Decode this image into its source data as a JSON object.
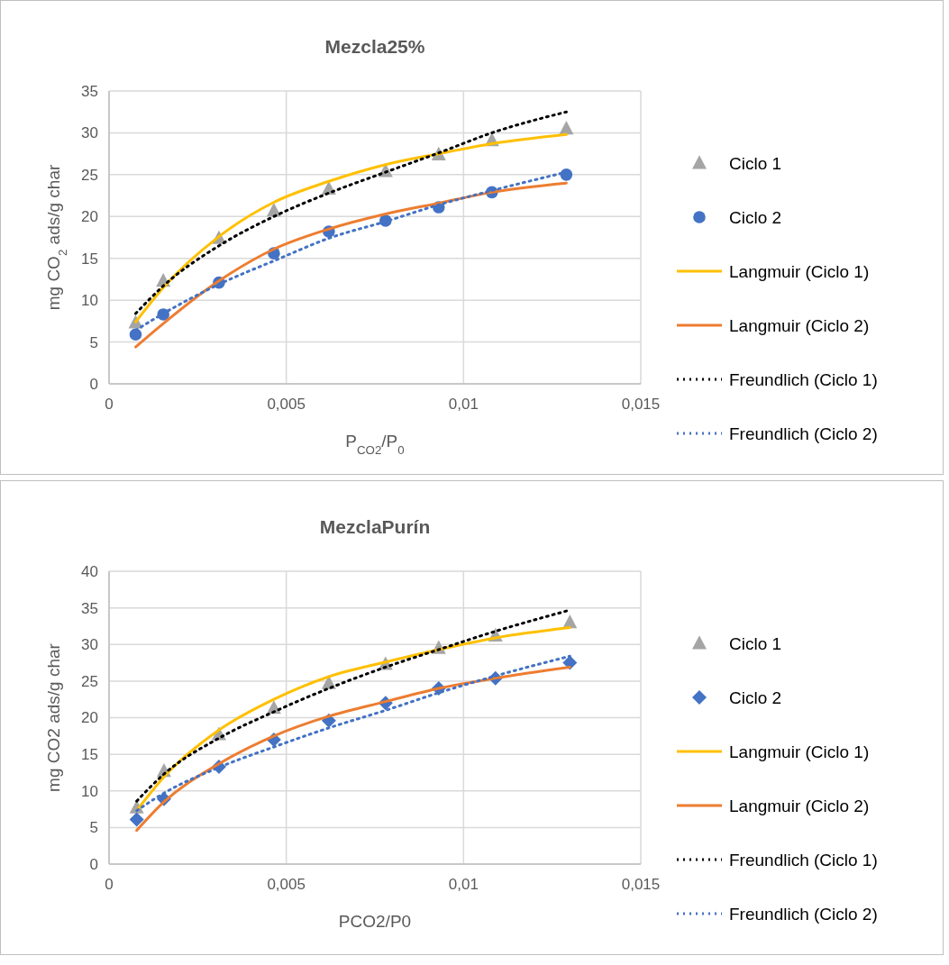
{
  "chart_data": [
    {
      "type": "scatter",
      "title": "Mezcla25%",
      "xlabel": "P$_{CO2}$/P$_{0}$",
      "ylabel": "mg CO$_{2}$ ads/g char",
      "xlim": [
        0,
        0.015
      ],
      "xticks": [
        0,
        {
          "value": 0.005,
          "label": "0,005"
        },
        {
          "value": 0.01,
          "label": "0,01"
        },
        {
          "value": 0.015,
          "label": "0,015"
        }
      ],
      "ylim": [
        0,
        35
      ],
      "yticks": [
        0,
        5,
        10,
        15,
        20,
        25,
        30,
        35
      ],
      "grid": true,
      "legend": "right",
      "x": [
        0.00075,
        0.00153,
        0.0031,
        0.00465,
        0.0062,
        0.0078,
        0.0093,
        0.0108,
        0.0129
      ],
      "series": [
        {
          "name": "Ciclo 1",
          "type": "scatter",
          "marker": "triangle",
          "color": "#a5a5a5",
          "values": [
            7.3,
            12.3,
            17.4,
            20.7,
            23.3,
            25.4,
            27.4,
            29.1,
            30.5
          ]
        },
        {
          "name": "Ciclo 2",
          "type": "scatter",
          "marker": "circle",
          "color": "#4472c4",
          "values": [
            5.9,
            8.3,
            12.1,
            15.6,
            18.2,
            19.5,
            21.1,
            22.9,
            25.0
          ]
        },
        {
          "name": "Langmuir (Ciclo 1)",
          "type": "line",
          "marker": "none",
          "line_style": "solid",
          "color": "#ffc000",
          "values": [
            7.4,
            11.5,
            17.6,
            21.7,
            24.2,
            26.2,
            27.5,
            28.7,
            29.8
          ]
        },
        {
          "name": "Langmuir (Ciclo 2)",
          "type": "line",
          "marker": "none",
          "line_style": "solid",
          "color": "#ed7d31",
          "values": [
            4.4,
            7.2,
            12.3,
            16.1,
            18.5,
            20.3,
            21.6,
            22.9,
            24.0
          ]
        },
        {
          "name": "Freundlich (Ciclo 1)",
          "type": "line",
          "marker": "none",
          "line_style": "dotted",
          "color": "#000000",
          "values": [
            8.4,
            11.7,
            16.5,
            20.0,
            22.8,
            25.3,
            27.6,
            30.0,
            32.5
          ]
        },
        {
          "name": "Freundlich (Ciclo 2)",
          "type": "line",
          "marker": "none",
          "line_style": "dotted",
          "color": "#4472c4",
          "values": [
            6.4,
            8.4,
            11.9,
            14.7,
            17.4,
            19.4,
            21.4,
            23.1,
            25.3
          ]
        }
      ]
    },
    {
      "type": "scatter",
      "title": "MezclaPurín",
      "xlabel": "PCO2/P0",
      "ylabel": "mg CO2 ads/g char",
      "xlim": [
        0,
        0.015
      ],
      "xticks": [
        0,
        {
          "value": 0.005,
          "label": "0,005"
        },
        {
          "value": 0.01,
          "label": "0,01"
        },
        {
          "value": 0.015,
          "label": "0,015"
        }
      ],
      "ylim": [
        0,
        40
      ],
      "yticks": [
        0,
        5,
        10,
        15,
        20,
        25,
        30,
        35,
        40
      ],
      "grid": true,
      "legend": "right",
      "x": [
        0.00078,
        0.00155,
        0.0031,
        0.00465,
        0.0062,
        0.0078,
        0.0093,
        0.0109,
        0.013
      ],
      "series": [
        {
          "name": "Ciclo 1",
          "type": "scatter",
          "marker": "triangle",
          "color": "#a5a5a5",
          "values": [
            7.7,
            12.7,
            17.7,
            21.3,
            24.7,
            27.3,
            29.5,
            31.2,
            33.0
          ]
        },
        {
          "name": "Ciclo 2",
          "type": "scatter",
          "marker": "diamond",
          "color": "#4472c4",
          "values": [
            6.1,
            8.9,
            13.3,
            17.0,
            19.6,
            22.0,
            24.0,
            25.4,
            27.5
          ]
        },
        {
          "name": "Langmuir (Ciclo 1)",
          "type": "line",
          "marker": "none",
          "line_style": "solid",
          "color": "#ffc000",
          "values": [
            7.3,
            11.9,
            18.3,
            22.5,
            25.6,
            27.6,
            29.3,
            30.9,
            32.3
          ]
        },
        {
          "name": "Langmuir (Ciclo 2)",
          "type": "line",
          "marker": "none",
          "line_style": "solid",
          "color": "#ed7d31",
          "values": [
            4.6,
            8.5,
            13.7,
            17.5,
            20.2,
            22.2,
            24.0,
            25.4,
            26.9
          ]
        },
        {
          "name": "Freundlich (Ciclo 1)",
          "type": "line",
          "marker": "none",
          "line_style": "dotted",
          "color": "#000000",
          "values": [
            8.6,
            12.3,
            17.2,
            20.8,
            24.0,
            26.9,
            29.3,
            31.8,
            34.7
          ]
        },
        {
          "name": "Freundlich (Ciclo 2)",
          "type": "line",
          "marker": "none",
          "line_style": "dotted",
          "color": "#4472c4",
          "values": [
            7.3,
            9.7,
            13.2,
            16.0,
            18.6,
            21.0,
            23.4,
            25.7,
            28.4
          ]
        }
      ]
    }
  ]
}
